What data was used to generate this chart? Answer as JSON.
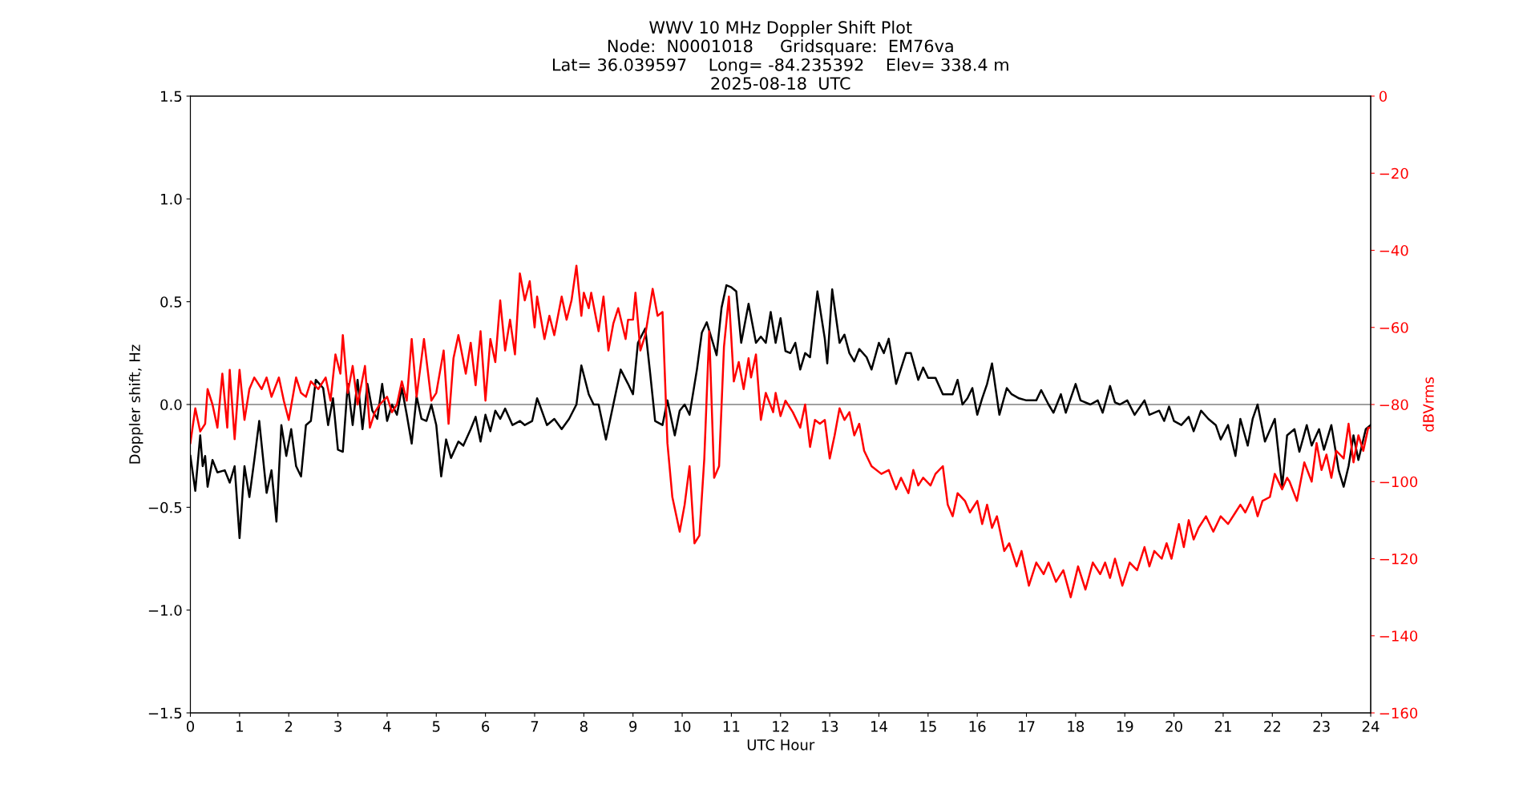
{
  "chart_data": {
    "type": "line",
    "title": "WWV 10 MHz Doppler Shift Plot\nNode:  N0001018     Gridsquare:  EM76va\nLat= 36.039597    Long= -84.235392    Elev= 338.4 m\n2025-08-18  UTC",
    "xlabel": "UTC Hour",
    "ylabel": "Doppler shift, Hz",
    "y2label": "dBVrms",
    "xlim": [
      0,
      24
    ],
    "xticks": [
      0,
      1,
      2,
      3,
      4,
      5,
      6,
      7,
      8,
      9,
      10,
      11,
      12,
      13,
      14,
      15,
      16,
      17,
      18,
      19,
      20,
      21,
      22,
      23,
      24
    ],
    "ylim": [
      -1.5,
      1.5
    ],
    "yticks": [
      {
        "value": -1.5,
        "label": "−1.5"
      },
      {
        "value": -1.0,
        "label": "−1.0"
      },
      {
        "value": -0.5,
        "label": "−0.5"
      },
      {
        "value": 0.0,
        "label": "0.0"
      },
      {
        "value": 0.5,
        "label": "0.5"
      },
      {
        "value": 1.0,
        "label": "1.0"
      },
      {
        "value": 1.5,
        "label": "1.5"
      }
    ],
    "y2lim": [
      -160,
      0
    ],
    "y2ticks": [
      {
        "value": -160,
        "label": "−160"
      },
      {
        "value": -140,
        "label": "−140"
      },
      {
        "value": -120,
        "label": "−120"
      },
      {
        "value": -100,
        "label": "−100"
      },
      {
        "value": -80,
        "label": "−80"
      },
      {
        "value": -60,
        "label": "−60"
      },
      {
        "value": -40,
        "label": "−40"
      },
      {
        "value": -20,
        "label": "−20"
      },
      {
        "value": 0,
        "label": "0"
      }
    ],
    "grid": false,
    "marker": "none",
    "line_style": "solid",
    "ref_lines": [
      {
        "axis": "y",
        "value": 0,
        "label": null,
        "color": "#808080",
        "line_style": "solid"
      }
    ],
    "series": [
      {
        "color": "#000000",
        "axis": "y",
        "x": [
          0.0,
          0.1,
          0.2,
          0.25,
          0.3,
          0.35,
          0.45,
          0.55,
          0.7,
          0.8,
          0.9,
          1.0,
          1.1,
          1.2,
          1.3,
          1.4,
          1.55,
          1.65,
          1.75,
          1.85,
          1.95,
          2.05,
          2.15,
          2.25,
          2.35,
          2.45,
          2.55,
          2.7,
          2.8,
          2.9,
          3.0,
          3.1,
          3.2,
          3.3,
          3.4,
          3.5,
          3.6,
          3.7,
          3.8,
          3.9,
          4.0,
          4.1,
          4.2,
          4.3,
          4.4,
          4.5,
          4.6,
          4.7,
          4.8,
          4.9,
          5.0,
          5.1,
          5.2,
          5.3,
          5.45,
          5.55,
          5.7,
          5.8,
          5.9,
          6.0,
          6.1,
          6.2,
          6.3,
          6.4,
          6.55,
          6.7,
          6.8,
          6.95,
          7.05,
          7.1,
          7.25,
          7.4,
          7.55,
          7.7,
          7.85,
          7.95,
          8.1,
          8.2,
          8.3,
          8.45,
          8.6,
          8.75,
          8.9,
          9.0,
          9.1,
          9.25,
          9.35,
          9.45,
          9.6,
          9.7,
          9.85,
          9.95,
          10.05,
          10.15,
          10.3,
          10.4,
          10.5,
          10.6,
          10.7,
          10.8,
          10.9,
          11.0,
          11.1,
          11.2,
          11.35,
          11.5,
          11.6,
          11.7,
          11.8,
          11.9,
          12.0,
          12.1,
          12.2,
          12.3,
          12.4,
          12.5,
          12.6,
          12.75,
          12.9,
          12.95,
          13.05,
          13.2,
          13.3,
          13.4,
          13.5,
          13.6,
          13.75,
          13.85,
          14.0,
          14.1,
          14.2,
          14.35,
          14.55,
          14.65,
          14.8,
          14.9,
          15.0,
          15.15,
          15.3,
          15.5,
          15.6,
          15.7,
          15.8,
          15.9,
          16.0,
          16.1,
          16.2,
          16.3,
          16.45,
          16.6,
          16.7,
          16.85,
          17.0,
          17.2,
          17.3,
          17.45,
          17.55,
          17.7,
          17.8,
          18.0,
          18.1,
          18.3,
          18.45,
          18.55,
          18.7,
          18.8,
          18.9,
          19.05,
          19.2,
          19.4,
          19.5,
          19.7,
          19.8,
          19.9,
          20.0,
          20.15,
          20.3,
          20.4,
          20.55,
          20.7,
          20.85,
          20.95,
          21.1,
          21.25,
          21.35,
          21.5,
          21.6,
          21.7,
          21.85,
          22.05,
          22.2,
          22.3,
          22.45,
          22.55,
          22.7,
          22.8,
          22.95,
          23.05,
          23.2,
          23.35,
          23.45,
          23.55,
          23.65,
          23.75,
          23.9,
          24.0
        ],
        "values": [
          -0.25,
          -0.42,
          -0.15,
          -0.3,
          -0.25,
          -0.4,
          -0.27,
          -0.33,
          -0.32,
          -0.38,
          -0.3,
          -0.65,
          -0.3,
          -0.45,
          -0.27,
          -0.08,
          -0.43,
          -0.32,
          -0.57,
          -0.1,
          -0.25,
          -0.12,
          -0.3,
          -0.35,
          -0.1,
          -0.08,
          0.12,
          0.08,
          -0.1,
          0.03,
          -0.22,
          -0.23,
          0.1,
          -0.1,
          0.12,
          -0.12,
          0.1,
          -0.03,
          -0.07,
          0.1,
          -0.08,
          0.0,
          -0.05,
          0.08,
          -0.05,
          -0.19,
          0.04,
          -0.07,
          -0.08,
          0.0,
          -0.1,
          -0.35,
          -0.17,
          -0.26,
          -0.18,
          -0.2,
          -0.12,
          -0.06,
          -0.18,
          -0.05,
          -0.13,
          -0.03,
          -0.07,
          -0.02,
          -0.1,
          -0.08,
          -0.1,
          -0.08,
          0.03,
          0.0,
          -0.1,
          -0.07,
          -0.12,
          -0.07,
          0.0,
          0.19,
          0.05,
          0.0,
          0.0,
          -0.17,
          0.0,
          0.17,
          0.1,
          0.05,
          0.3,
          0.37,
          0.15,
          -0.08,
          -0.1,
          0.02,
          -0.15,
          -0.03,
          0.0,
          -0.05,
          0.17,
          0.35,
          0.4,
          0.32,
          0.24,
          0.47,
          0.58,
          0.57,
          0.55,
          0.3,
          0.49,
          0.3,
          0.33,
          0.3,
          0.45,
          0.3,
          0.42,
          0.26,
          0.25,
          0.3,
          0.17,
          0.25,
          0.23,
          0.55,
          0.32,
          0.2,
          0.56,
          0.3,
          0.34,
          0.25,
          0.21,
          0.27,
          0.23,
          0.17,
          0.3,
          0.25,
          0.32,
          0.1,
          0.25,
          0.25,
          0.12,
          0.18,
          0.13,
          0.13,
          0.05,
          0.05,
          0.12,
          0.0,
          0.03,
          0.08,
          -0.05,
          0.03,
          0.1,
          0.2,
          -0.05,
          0.08,
          0.05,
          0.03,
          0.02,
          0.02,
          0.07,
          0.0,
          -0.04,
          0.05,
          -0.04,
          0.1,
          0.02,
          0.0,
          0.02,
          -0.04,
          0.09,
          0.01,
          0.0,
          0.02,
          -0.05,
          0.02,
          -0.05,
          -0.03,
          -0.08,
          -0.01,
          -0.08,
          -0.1,
          -0.06,
          -0.13,
          -0.03,
          -0.07,
          -0.1,
          -0.17,
          -0.1,
          -0.25,
          -0.07,
          -0.2,
          -0.07,
          0.0,
          -0.18,
          -0.07,
          -0.4,
          -0.15,
          -0.12,
          -0.23,
          -0.1,
          -0.2,
          -0.12,
          -0.22,
          -0.1,
          -0.32,
          -0.4,
          -0.3,
          -0.15,
          -0.27,
          -0.12,
          -0.1
        ]
      },
      {
        "color": "#ff0000",
        "axis": "y2",
        "x": [
          0.0,
          0.1,
          0.2,
          0.3,
          0.35,
          0.45,
          0.55,
          0.65,
          0.75,
          0.8,
          0.9,
          1.0,
          1.1,
          1.2,
          1.3,
          1.45,
          1.55,
          1.65,
          1.8,
          1.9,
          2.0,
          2.15,
          2.25,
          2.35,
          2.45,
          2.6,
          2.75,
          2.85,
          2.95,
          3.05,
          3.1,
          3.2,
          3.3,
          3.4,
          3.55,
          3.65,
          3.75,
          3.85,
          4.0,
          4.1,
          4.2,
          4.3,
          4.4,
          4.5,
          4.6,
          4.75,
          4.9,
          5.0,
          5.15,
          5.25,
          5.35,
          5.45,
          5.6,
          5.7,
          5.8,
          5.9,
          6.0,
          6.1,
          6.2,
          6.3,
          6.4,
          6.5,
          6.6,
          6.7,
          6.8,
          6.9,
          7.0,
          7.05,
          7.2,
          7.3,
          7.4,
          7.55,
          7.65,
          7.75,
          7.85,
          7.95,
          8.0,
          8.1,
          8.15,
          8.3,
          8.4,
          8.5,
          8.6,
          8.7,
          8.85,
          8.9,
          9.0,
          9.05,
          9.15,
          9.25,
          9.4,
          9.5,
          9.6,
          9.7,
          9.8,
          9.95,
          10.05,
          10.15,
          10.25,
          10.35,
          10.45,
          10.55,
          10.65,
          10.75,
          10.85,
          10.95,
          11.05,
          11.15,
          11.25,
          11.35,
          11.4,
          11.5,
          11.6,
          11.7,
          11.85,
          11.9,
          12.0,
          12.1,
          12.25,
          12.4,
          12.5,
          12.6,
          12.7,
          12.8,
          12.9,
          13.0,
          13.1,
          13.2,
          13.3,
          13.4,
          13.5,
          13.6,
          13.7,
          13.85,
          14.05,
          14.2,
          14.35,
          14.45,
          14.6,
          14.7,
          14.8,
          14.9,
          15.05,
          15.15,
          15.3,
          15.4,
          15.5,
          15.6,
          15.75,
          15.85,
          16.0,
          16.1,
          16.2,
          16.3,
          16.4,
          16.55,
          16.65,
          16.8,
          16.9,
          17.05,
          17.2,
          17.35,
          17.45,
          17.6,
          17.75,
          17.9,
          18.05,
          18.2,
          18.35,
          18.5,
          18.6,
          18.7,
          18.8,
          18.95,
          19.1,
          19.25,
          19.4,
          19.5,
          19.6,
          19.75,
          19.85,
          19.95,
          20.1,
          20.2,
          20.3,
          20.4,
          20.5,
          20.65,
          20.8,
          20.95,
          21.1,
          21.25,
          21.35,
          21.45,
          21.6,
          21.7,
          21.8,
          21.95,
          22.05,
          22.2,
          22.3,
          22.35,
          22.5,
          22.65,
          22.8,
          22.9,
          23.0,
          23.1,
          23.2,
          23.3,
          23.45,
          23.55,
          23.65,
          23.75,
          23.85,
          23.95,
          24.0
        ],
        "values": [
          -90,
          -81,
          -87,
          -85,
          -76,
          -80,
          -86,
          -72,
          -86,
          -71,
          -89,
          -71,
          -84,
          -76,
          -73,
          -76,
          -73,
          -78,
          -73,
          -79,
          -84,
          -73,
          -77,
          -78,
          -74,
          -76,
          -73,
          -79,
          -67,
          -72,
          -62,
          -77,
          -70,
          -80,
          -70,
          -86,
          -82,
          -80,
          -78,
          -82,
          -80,
          -74,
          -79,
          -63,
          -78,
          -63,
          -79,
          -77,
          -66,
          -85,
          -68,
          -62,
          -72,
          -64,
          -75,
          -61,
          -79,
          -63,
          -69,
          -53,
          -66,
          -58,
          -67,
          -46,
          -53,
          -48,
          -60,
          -52,
          -63,
          -57,
          -62,
          -52,
          -58,
          -53,
          -44,
          -57,
          -51,
          -55,
          -51,
          -61,
          -52,
          -66,
          -59,
          -55,
          -63,
          -58,
          -58,
          -51,
          -66,
          -62,
          -50,
          -57,
          -56,
          -90,
          -104,
          -113,
          -106,
          -96,
          -116,
          -114,
          -94,
          -61,
          -99,
          -96,
          -65,
          -52,
          -74,
          -69,
          -76,
          -68,
          -73,
          -67,
          -84,
          -77,
          -82,
          -77,
          -83,
          -79,
          -82,
          -86,
          -80,
          -91,
          -84,
          -85,
          -84,
          -94,
          -88,
          -81,
          -84,
          -82,
          -88,
          -85,
          -92,
          -96,
          -98,
          -97,
          -102,
          -99,
          -103,
          -97,
          -101,
          -99,
          -101,
          -98,
          -96,
          -106,
          -109,
          -103,
          -105,
          -108,
          -105,
          -111,
          -106,
          -112,
          -109,
          -118,
          -116,
          -122,
          -118,
          -127,
          -121,
          -124,
          -121,
          -126,
          -123,
          -130,
          -122,
          -128,
          -121,
          -124,
          -121,
          -125,
          -120,
          -127,
          -121,
          -123,
          -117,
          -122,
          -118,
          -120,
          -116,
          -120,
          -111,
          -117,
          -110,
          -115,
          -112,
          -109,
          -113,
          -109,
          -111,
          -108,
          -106,
          -108,
          -104,
          -109,
          -105,
          -104,
          -98,
          -102,
          -99,
          -100,
          -105,
          -95,
          -100,
          -90,
          -97,
          -93,
          -99,
          -92,
          -94,
          -85,
          -95,
          -88,
          -92,
          -86,
          -86
        ]
      }
    ]
  }
}
